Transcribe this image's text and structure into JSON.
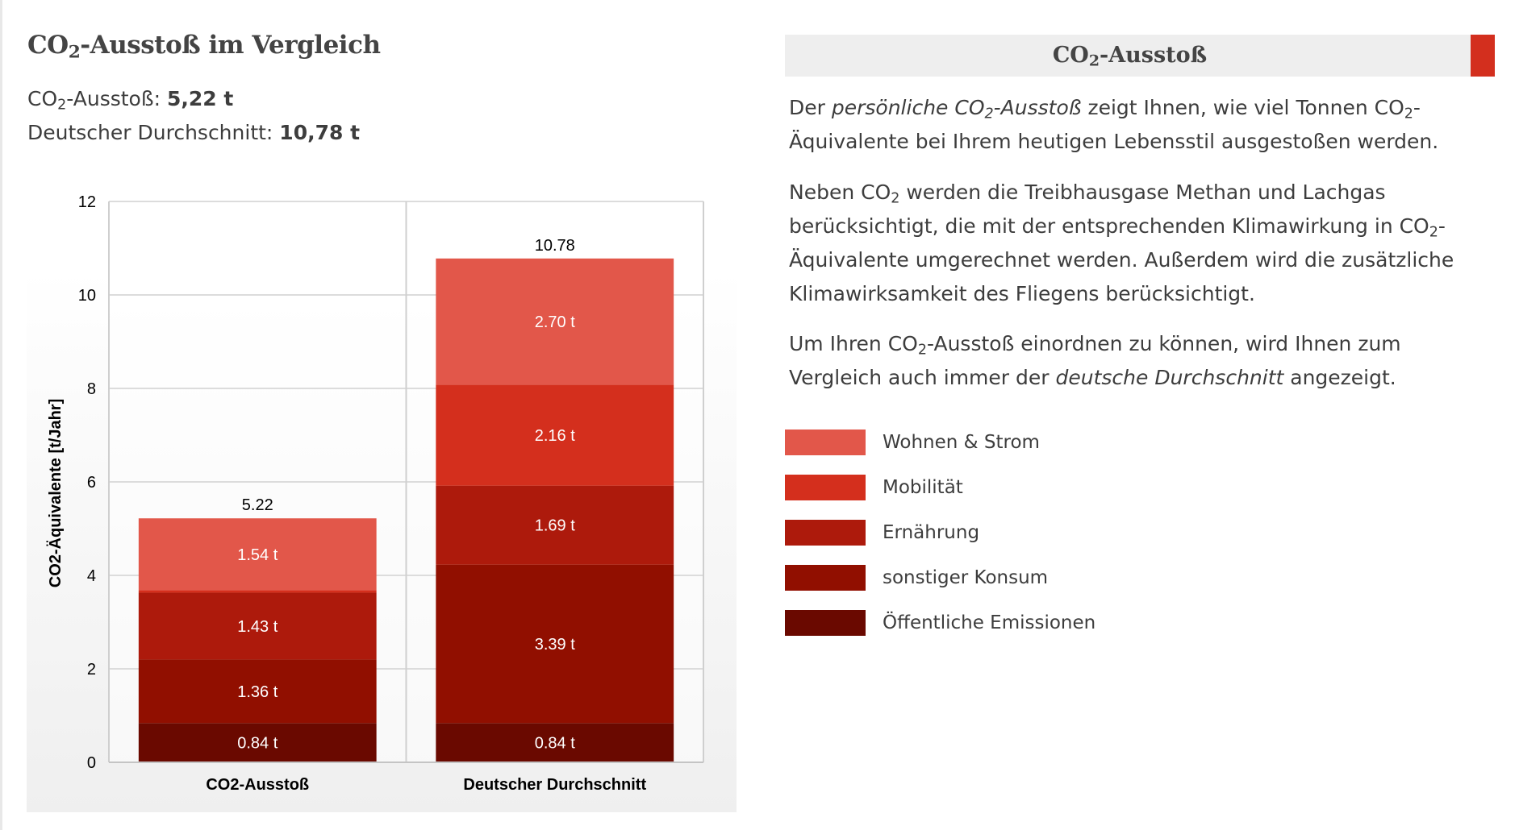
{
  "page": {
    "title_prefix": "CO",
    "title_sub": "2",
    "title_rest": "-Ausstoß im Vergleich",
    "summary": [
      {
        "label_prefix": "CO",
        "label_sub": "2",
        "label_rest": "-Ausstoß: ",
        "value": "5,22 t"
      },
      {
        "label_prefix": "Deutscher Durchschnitt: ",
        "label_sub": "",
        "label_rest": "",
        "value": "10,78 t"
      }
    ]
  },
  "info": {
    "header_prefix": "CO",
    "header_sub": "2",
    "header_rest": "-Ausstoß",
    "accent_color": "#d32f1e",
    "p1": {
      "a": "Der ",
      "em1": "persönliche CO",
      "em1_sub": "2",
      "em1_rest": "-Ausstoß",
      "b": " zeigt Ihnen, wie viel Tonnen CO",
      "b_sub": "2",
      "c": "-Äquivalente bei Ihrem heutigen Lebensstil ausgestoßen werden."
    },
    "p2": {
      "a": "Neben CO",
      "a_sub": "2",
      "b": " werden die Treibhausgase Methan und Lachgas berücksichtigt, die mit der entsprechenden Klimawirkung in CO",
      "b_sub": "2",
      "c": "-Äquivalente umgerechnet werden. Außerdem wird die zusätzliche Klimawirksamkeit des Fliegens berücksichtigt."
    },
    "p3": {
      "a": "Um Ihren CO",
      "a_sub": "2",
      "b": "-Ausstoß einordnen zu können, wird Ihnen zum Vergleich auch immer der ",
      "em": "deutsche Durchschnitt",
      "c": " angezeigt."
    }
  },
  "legend": [
    {
      "label": "Wohnen & Strom",
      "color": "#e2574a"
    },
    {
      "label": "Mobilität",
      "color": "#d42f1d"
    },
    {
      "label": "Ernährung",
      "color": "#ad1a0c"
    },
    {
      "label": "sonstiger Konsum",
      "color": "#910f00"
    },
    {
      "label": "Öffentliche Emissionen",
      "color": "#6a0900"
    }
  ],
  "chart_data": {
    "type": "bar",
    "stacked": true,
    "title": "",
    "xlabel": "",
    "ylabel": "CO2-Äquivalente [t/Jahr]",
    "ylim": [
      0,
      12
    ],
    "yticks": [
      0,
      2,
      4,
      6,
      8,
      10,
      12
    ],
    "grid": true,
    "legend_position": "right (outside chart)",
    "categories": [
      "CO2-Ausstoß",
      "Deutscher Durchschnitt"
    ],
    "totals": [
      5.22,
      10.78
    ],
    "total_labels": [
      "5.22",
      "10.78"
    ],
    "series": [
      {
        "name": "Öffentliche Emissionen",
        "color": "#6a0900",
        "values": [
          0.84,
          0.84
        ],
        "labels": [
          "0.84 t",
          "0.84 t"
        ]
      },
      {
        "name": "sonstiger Konsum",
        "color": "#910f00",
        "values": [
          1.36,
          3.39
        ],
        "labels": [
          "1.36 t",
          "3.39 t"
        ]
      },
      {
        "name": "Ernährung",
        "color": "#ad1a0c",
        "values": [
          1.43,
          1.69
        ],
        "labels": [
          "1.43 t",
          "1.69 t"
        ]
      },
      {
        "name": "Mobilität",
        "color": "#d42f1d",
        "values": [
          0.05,
          2.16
        ],
        "labels": [
          "",
          "2.16 t"
        ]
      },
      {
        "name": "Wohnen & Strom",
        "color": "#e2574a",
        "values": [
          1.54,
          2.7
        ],
        "labels": [
          "1.54 t",
          "2.70 t"
        ]
      }
    ]
  }
}
